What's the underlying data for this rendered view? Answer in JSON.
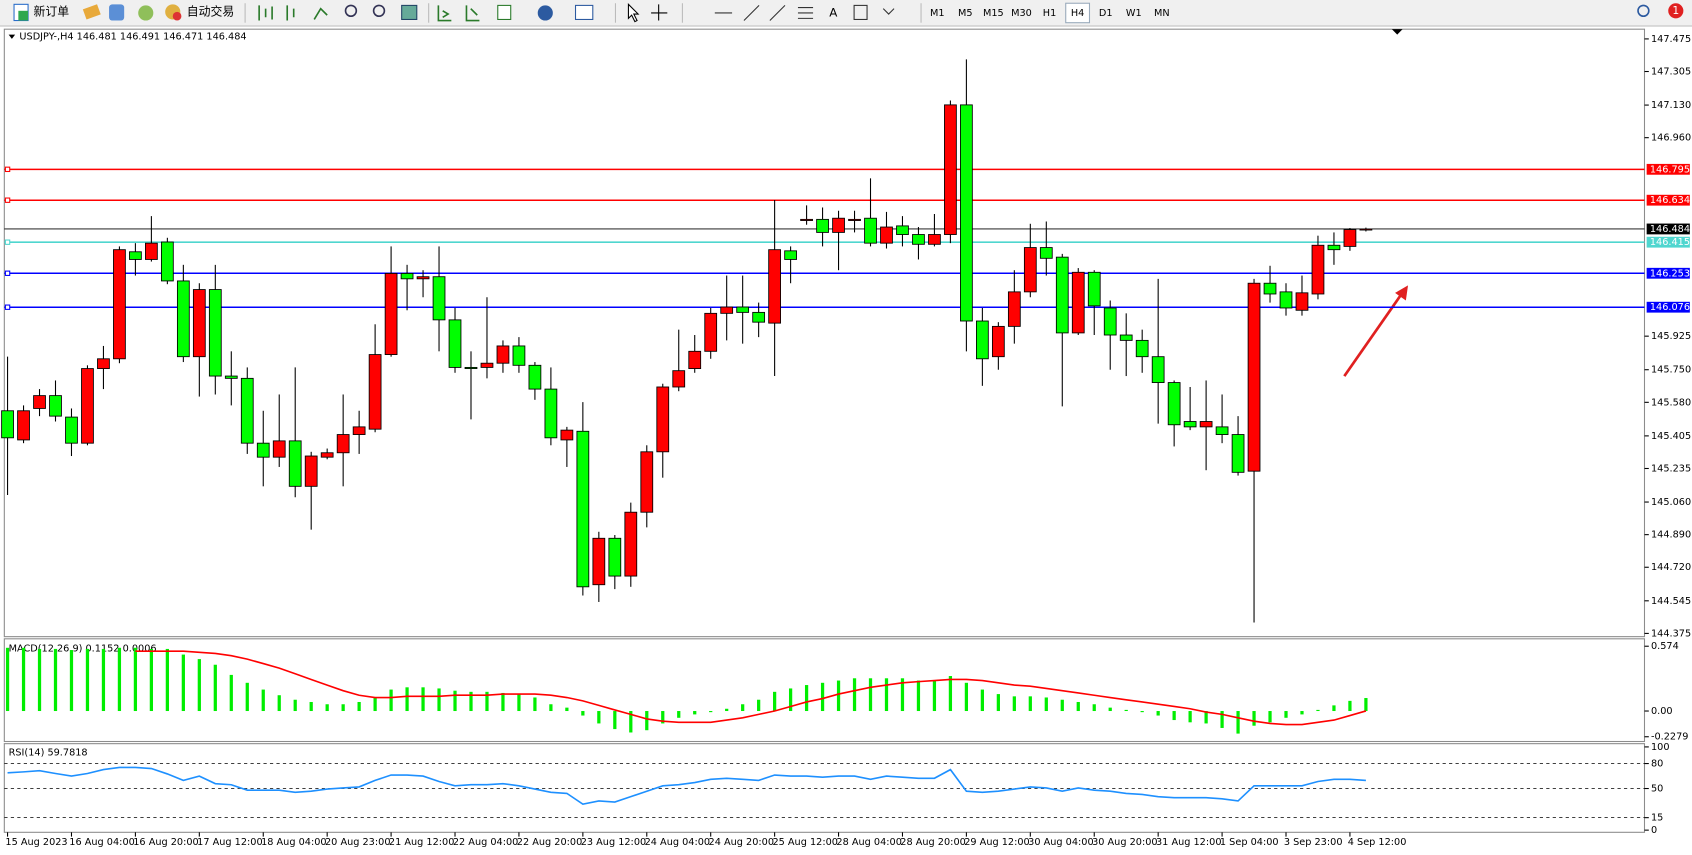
{
  "toolbar": {
    "new_order": "新订单",
    "auto_trading": "自动交易",
    "timeframes": [
      "M1",
      "M5",
      "M15",
      "M30",
      "H1",
      "H4",
      "D1",
      "W1",
      "MN"
    ],
    "active_timeframe": "H4",
    "notification_count": 1
  },
  "chart_data": [
    {
      "type": "candlestick",
      "title": "USDJPY-,H4 146.481 146.491 146.471 146.484",
      "up_color": "#ff0000",
      "down_color": "#00ff00",
      "ylim": [
        144.375,
        147.475
      ],
      "yticks": [
        147.475,
        147.305,
        {
          "value": 147.13,
          "label": "147.130"
        },
        {
          "value": 146.96,
          "label": "146.960"
        },
        145.925,
        {
          "value": 145.75,
          "label": "145.750"
        },
        {
          "value": 145.58,
          "label": "145.580"
        },
        145.405,
        145.235,
        {
          "value": 145.06,
          "label": "145.060"
        },
        {
          "value": 144.89,
          "label": "144.890"
        },
        {
          "value": 144.72,
          "label": "144.720"
        },
        144.545,
        144.375
      ],
      "levels": [
        {
          "value": 146.795,
          "color": "#ff0000"
        },
        {
          "value": 146.634,
          "color": "#ff0000"
        },
        {
          "value": 146.484,
          "color": "#000000"
        },
        {
          "value": 146.415,
          "color": "#4fd6cf"
        },
        {
          "value": 146.253,
          "color": "#0000ff"
        },
        {
          "value": 146.076,
          "color": "#0000ff"
        }
      ],
      "categories": [
        "15 Aug 2023",
        null,
        null,
        null,
        "16 Aug 04:00",
        null,
        null,
        null,
        "16 Aug 20:00",
        null,
        null,
        null,
        "17 Aug 12:00",
        null,
        null,
        null,
        "18 Aug 04:00",
        null,
        null,
        null,
        "20 Aug 23:00",
        null,
        null,
        null,
        "21 Aug 12:00",
        null,
        null,
        null,
        "22 Aug 04:00",
        null,
        null,
        null,
        "22 Aug 20:00",
        null,
        null,
        null,
        "23 Aug 12:00",
        null,
        null,
        null,
        "24 Aug 04:00",
        null,
        null,
        null,
        "24 Aug 20:00",
        null,
        null,
        null,
        "25 Aug 12:00",
        null,
        null,
        null,
        "28 Aug 04:00",
        null,
        null,
        null,
        "28 Aug 20:00",
        null,
        null,
        null,
        "29 Aug 12:00",
        null,
        null,
        null,
        "30 Aug 04:00",
        null,
        null,
        null,
        "30 Aug 20:00",
        null,
        null,
        null,
        "31 Aug 12:00",
        null,
        null,
        null,
        "1 Sep 04:00",
        null,
        null,
        null,
        "3 Sep 23:00",
        null,
        null,
        null,
        "4 Sep 12:00",
        null
      ],
      "ohlc": [
        [
          145.536,
          145.818,
          145.097,
          145.395
        ],
        [
          145.384,
          145.564,
          145.367,
          145.536
        ],
        [
          145.548,
          145.649,
          145.508,
          145.615
        ],
        [
          145.615,
          145.694,
          145.48,
          145.508
        ],
        [
          145.503,
          145.548,
          145.3,
          145.367
        ],
        [
          145.367,
          145.773,
          145.356,
          145.756
        ],
        [
          145.756,
          145.874,
          145.649,
          145.807
        ],
        [
          145.807,
          146.393,
          145.784,
          146.376
        ],
        [
          146.365,
          146.41,
          146.241,
          146.325
        ],
        [
          146.325,
          146.551,
          146.314,
          146.41
        ],
        [
          146.416,
          146.438,
          146.196,
          146.213
        ],
        [
          146.213,
          146.297,
          145.79,
          145.818
        ],
        [
          145.818,
          146.201,
          145.61,
          146.168
        ],
        [
          146.168,
          146.297,
          145.621,
          145.717
        ],
        [
          145.717,
          145.846,
          145.564,
          145.705
        ],
        [
          145.705,
          145.762,
          145.311,
          145.367
        ],
        [
          145.367,
          145.536,
          145.142,
          145.294
        ],
        [
          145.294,
          145.621,
          145.243,
          145.379
        ],
        [
          145.379,
          145.762,
          145.085,
          145.142
        ],
        [
          145.142,
          145.322,
          144.916,
          145.3
        ],
        [
          145.294,
          145.339,
          145.283,
          145.317
        ],
        [
          145.317,
          145.621,
          145.142,
          145.412
        ],
        [
          145.412,
          145.536,
          145.311,
          145.452
        ],
        [
          145.44,
          145.987,
          145.424,
          145.829
        ],
        [
          145.829,
          146.393,
          145.818,
          146.252
        ],
        [
          146.252,
          146.297,
          146.06,
          146.224
        ],
        [
          146.224,
          146.269,
          146.128,
          146.235
        ],
        [
          146.235,
          146.393,
          145.846,
          146.01
        ],
        [
          146.01,
          146.072,
          145.734,
          145.762
        ],
        [
          145.762,
          145.846,
          145.491,
          145.756
        ],
        [
          145.762,
          146.128,
          145.705,
          145.784
        ],
        [
          145.784,
          145.903,
          145.734,
          145.874
        ],
        [
          145.874,
          145.92,
          145.734,
          145.773
        ],
        [
          145.773,
          145.79,
          145.593,
          145.649
        ],
        [
          145.649,
          145.762,
          145.356,
          145.395
        ],
        [
          145.384,
          145.452,
          145.243,
          145.435
        ],
        [
          145.429,
          145.581,
          144.573,
          144.618
        ],
        [
          144.629,
          144.905,
          144.539,
          144.871
        ],
        [
          144.871,
          144.888,
          144.606,
          144.674
        ],
        [
          144.674,
          145.057,
          144.618,
          145.007
        ],
        [
          145.007,
          145.356,
          144.928,
          145.322
        ],
        [
          145.322,
          145.677,
          145.187,
          145.66
        ],
        [
          145.66,
          145.959,
          145.638,
          145.745
        ],
        [
          145.756,
          145.931,
          145.734,
          145.846
        ],
        [
          145.846,
          146.072,
          145.807,
          146.044
        ],
        [
          146.044,
          146.241,
          145.903,
          146.077
        ],
        [
          146.077,
          146.241,
          145.886,
          146.049
        ],
        [
          146.049,
          146.1,
          145.92,
          145.998
        ],
        [
          145.993,
          146.635,
          145.717,
          146.376
        ],
        [
          146.37,
          146.393,
          146.201,
          146.325
        ],
        [
          146.528,
          146.607,
          146.506,
          146.534
        ],
        [
          146.534,
          146.596,
          146.393,
          146.466
        ],
        [
          146.466,
          146.579,
          146.269,
          146.54
        ],
        [
          146.528,
          146.579,
          146.466,
          146.534
        ],
        [
          146.54,
          146.748,
          146.393,
          146.41
        ],
        [
          146.41,
          146.573,
          146.382,
          146.494
        ],
        [
          146.5,
          146.551,
          146.393,
          146.455
        ],
        [
          146.455,
          146.494,
          146.325,
          146.404
        ],
        [
          146.404,
          146.562,
          146.393,
          146.455
        ],
        [
          146.455,
          147.154,
          146.41,
          147.131
        ],
        [
          147.131,
          147.368,
          145.846,
          146.004
        ],
        [
          146.004,
          146.072,
          145.666,
          145.807
        ],
        [
          145.818,
          145.998,
          145.75,
          145.976
        ],
        [
          145.976,
          146.269,
          145.886,
          146.156
        ],
        [
          146.156,
          146.511,
          146.128,
          146.387
        ],
        [
          146.387,
          146.523,
          146.241,
          146.331
        ],
        [
          146.337,
          146.354,
          145.559,
          145.942
        ],
        [
          145.942,
          146.28,
          145.931,
          146.258
        ],
        [
          146.258,
          146.269,
          145.931,
          146.083
        ],
        [
          146.072,
          146.111,
          145.75,
          145.931
        ],
        [
          145.931,
          146.044,
          145.717,
          145.903
        ],
        [
          145.903,
          145.959,
          145.734,
          145.818
        ],
        [
          145.818,
          146.224,
          145.469,
          145.683
        ],
        [
          145.683,
          145.694,
          145.35,
          145.463
        ],
        [
          145.48,
          145.66,
          145.435,
          145.452
        ],
        [
          145.452,
          145.694,
          145.226,
          145.48
        ],
        [
          145.452,
          145.621,
          145.367,
          145.412
        ],
        [
          145.412,
          145.508,
          145.198,
          145.215
        ],
        [
          145.221,
          146.224,
          144.432,
          146.201
        ],
        [
          146.201,
          146.292,
          146.1,
          146.145
        ],
        [
          146.156,
          146.201,
          146.032,
          146.072
        ],
        [
          146.06,
          146.241,
          146.032,
          146.151
        ],
        [
          146.145,
          146.449,
          146.117,
          146.399
        ],
        [
          146.399,
          146.466,
          146.297,
          146.376
        ],
        [
          146.393,
          146.489,
          146.37,
          146.481
        ],
        [
          146.481,
          146.491,
          146.471,
          146.484
        ]
      ]
    },
    {
      "type": "macd",
      "title": "MACD(12,26,9) 0.1152 0.0006",
      "ylim": [
        -0.27,
        0.63
      ],
      "yticks": [
        0.574,
        {
          "value": 0,
          "label": "0.00"
        },
        -0.2279
      ],
      "histogram": {
        "color": "#00ee00",
        "values": [
          0.56,
          0.56,
          0.55,
          0.55,
          0.54,
          0.55,
          0.55,
          0.56,
          0.56,
          0.55,
          0.55,
          0.5,
          0.46,
          0.41,
          0.32,
          0.25,
          0.19,
          0.14,
          0.1,
          0.08,
          0.06,
          0.06,
          0.08,
          0.12,
          0.19,
          0.21,
          0.21,
          0.2,
          0.18,
          0.17,
          0.17,
          0.16,
          0.15,
          0.12,
          0.06,
          0.03,
          -0.04,
          -0.11,
          -0.16,
          -0.19,
          -0.17,
          -0.11,
          -0.06,
          -0.03,
          -0.01,
          0.02,
          0.06,
          0.1,
          0.17,
          0.2,
          0.23,
          0.25,
          0.27,
          0.29,
          0.29,
          0.29,
          0.29,
          0.27,
          0.27,
          0.31,
          0.25,
          0.19,
          0.15,
          0.13,
          0.13,
          0.12,
          0.1,
          0.08,
          0.06,
          0.03,
          0.01,
          -0.01,
          -0.04,
          -0.08,
          -0.1,
          -0.11,
          -0.15,
          -0.2,
          -0.13,
          -0.1,
          -0.06,
          -0.03,
          0.01,
          0.05,
          0.09,
          0.1152
        ]
      },
      "signal": {
        "color": "#ff0000",
        "values": [
          null,
          null,
          null,
          null,
          null,
          null,
          null,
          null,
          0.53,
          0.53,
          0.53,
          0.53,
          0.52,
          0.51,
          0.49,
          0.46,
          0.42,
          0.38,
          0.33,
          0.28,
          0.23,
          0.18,
          0.14,
          0.12,
          0.12,
          0.13,
          0.13,
          0.13,
          0.14,
          0.14,
          0.14,
          0.15,
          0.15,
          0.15,
          0.14,
          0.12,
          0.09,
          0.05,
          0.01,
          -0.03,
          -0.07,
          -0.09,
          -0.1,
          -0.1,
          -0.1,
          -0.08,
          -0.06,
          -0.03,
          0,
          0.04,
          0.08,
          0.11,
          0.15,
          0.18,
          0.21,
          0.23,
          0.25,
          0.26,
          0.27,
          0.28,
          0.28,
          0.27,
          0.25,
          0.23,
          0.22,
          0.2,
          0.18,
          0.16,
          0.14,
          0.12,
          0.1,
          0.08,
          0.06,
          0.04,
          0.02,
          -0.01,
          -0.03,
          -0.06,
          -0.09,
          -0.11,
          -0.12,
          -0.12,
          -0.1,
          -0.08,
          -0.04,
          0.0006
        ]
      }
    },
    {
      "type": "line",
      "title": "RSI(14) 59.7818",
      "ylim": [
        0,
        100
      ],
      "yticks": [
        100,
        80,
        50,
        15,
        0
      ],
      "color": "#1e90ff",
      "values": [
        68.8,
        70,
        71.4,
        68,
        64.9,
        68,
        72.7,
        75.3,
        75.3,
        74,
        67.5,
        59.7,
        64.9,
        55.8,
        54.5,
        48.1,
        48.1,
        48.1,
        45.5,
        46.8,
        49.4,
        50.6,
        51.9,
        59.7,
        66.2,
        66.2,
        64.9,
        58.4,
        53.2,
        54.5,
        54.5,
        55.8,
        53.2,
        49.4,
        45.5,
        44.2,
        31.2,
        35.1,
        33.8,
        40.3,
        46.8,
        53.2,
        54.5,
        57.1,
        61,
        62.3,
        61,
        59.7,
        66.2,
        64.9,
        64.9,
        63.6,
        64.9,
        64.9,
        61,
        64.9,
        63.6,
        62.3,
        62.3,
        72.7,
        46.8,
        45.5,
        46.8,
        49.4,
        51.9,
        50.6,
        46.8,
        50.6,
        48.1,
        46.8,
        44.2,
        42.9,
        40.3,
        39,
        39,
        39,
        37.7,
        35.1,
        53.2,
        53.2,
        53.2,
        53.2,
        58.4,
        61,
        61,
        59.7818
      ]
    }
  ]
}
